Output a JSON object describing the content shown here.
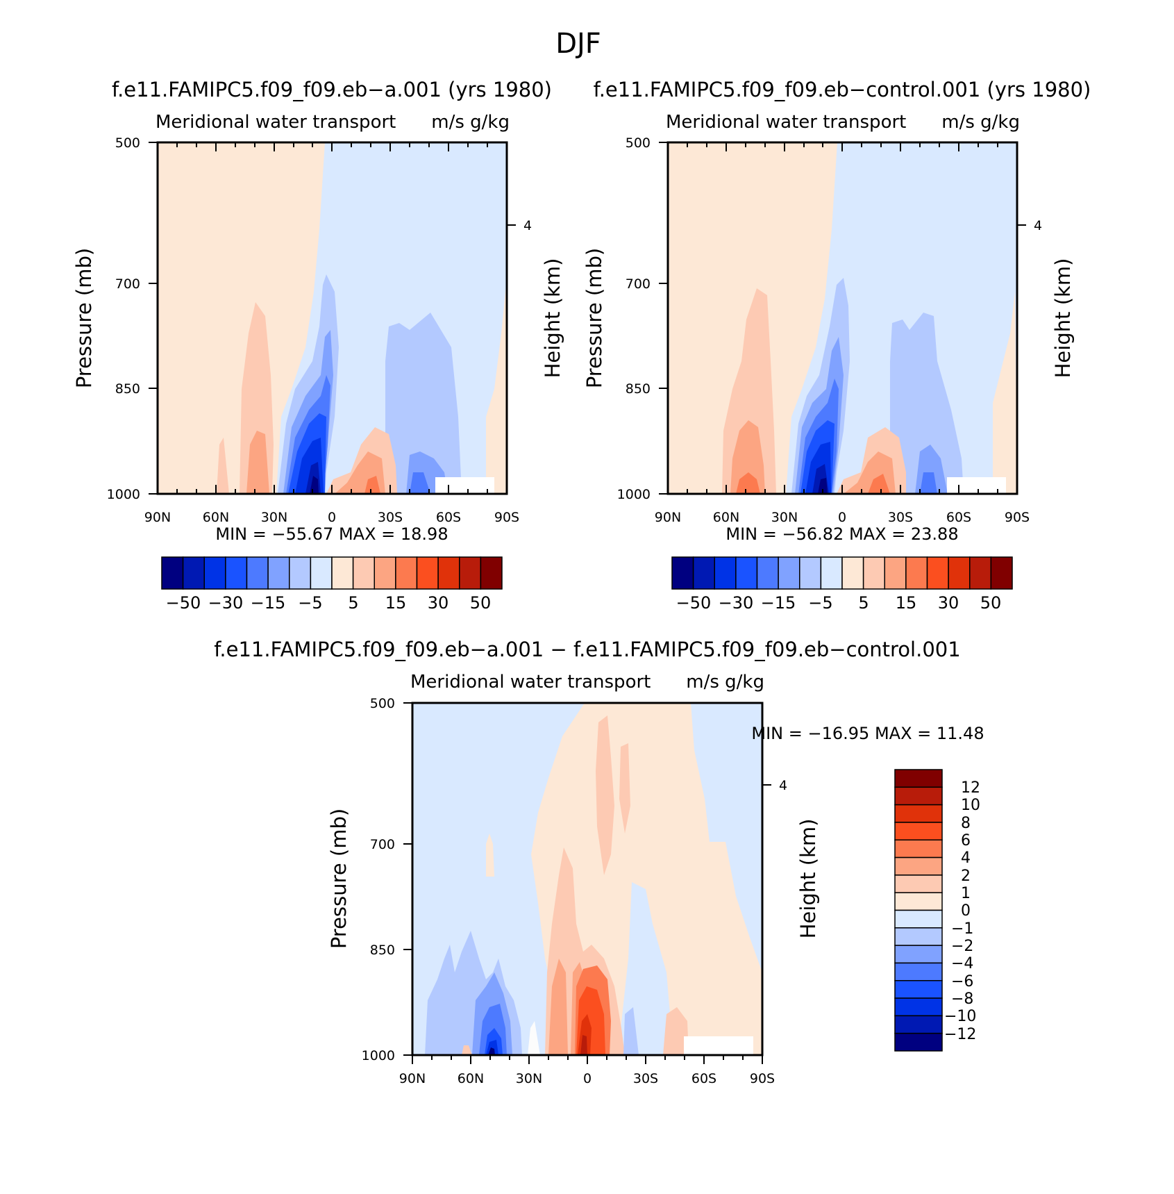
{
  "figure": {
    "title": "DJF"
  },
  "panels": [
    {
      "id": "a",
      "case_title": "f.e11.FAMIPC5.f09_f09.eb−a.001 (yrs 1980)",
      "variable": "Meridional water transport",
      "units": "m/s g/kg",
      "ylabel": "Pressure (mb)",
      "ylabel_right": "Height (km)",
      "minmax": "MIN = −55.67   MAX =   18.98"
    },
    {
      "id": "control",
      "case_title": "f.e11.FAMIPC5.f09_f09.eb−control.001 (yrs 1980)",
      "variable": "Meridional water transport",
      "units": "m/s g/kg",
      "ylabel": "Pressure (mb)",
      "ylabel_right": "Height (km)",
      "minmax": "MIN = −56.82   MAX =   23.88"
    },
    {
      "id": "diff",
      "case_title": "f.e11.FAMIPC5.f09_f09.eb−a.001 − f.e11.FAMIPC5.f09_f09.eb−control.001",
      "variable": "Meridional water transport",
      "units": "m/s g/kg",
      "ylabel": "Pressure (mb)",
      "ylabel_right": "Height (km)",
      "minmax": "MIN = −16.95   MAX =   11.48"
    }
  ],
  "axes": {
    "x_ticks": [
      "90N",
      "60N",
      "30N",
      "0",
      "30S",
      "60S",
      "90S"
    ],
    "y_ticks": [
      "500",
      "700",
      "850",
      "1000"
    ],
    "y_right_ticks": [
      "4"
    ]
  },
  "colorbar_main": {
    "colors": [
      "#000080",
      "#0019b3",
      "#0033e6",
      "#1a53ff",
      "#4d7aff",
      "#80a2ff",
      "#b3c9ff",
      "#d9e9ff",
      "#fde8d6",
      "#fdcab3",
      "#fca582",
      "#fc7a4f",
      "#fb4f1f",
      "#e0320a",
      "#b81c0a",
      "#800000"
    ],
    "labels": [
      "−50",
      "−30",
      "−15",
      "−5",
      "5",
      "15",
      "30",
      "50"
    ]
  },
  "colorbar_diff": {
    "colors": [
      "#800000",
      "#b81c0a",
      "#e0320a",
      "#fb4f1f",
      "#fc7a4f",
      "#fca582",
      "#fdcab3",
      "#fde8d6",
      "#d9e9ff",
      "#b3c9ff",
      "#80a2ff",
      "#4d7aff",
      "#1a53ff",
      "#0033e6",
      "#0019b3",
      "#000080"
    ],
    "labels": [
      "12",
      "10",
      "8",
      "6",
      "4",
      "2",
      "1",
      "0",
      "−1",
      "−2",
      "−4",
      "−6",
      "−8",
      "−10",
      "−12"
    ]
  },
  "chart_data": [
    {
      "type": "heatmap",
      "title": "f.e11.FAMIPC5.f09_f09.eb−a.001 (yrs 1980)",
      "subtitle": "Meridional water transport",
      "units": "m/s g/kg",
      "xlabel": "",
      "ylabel": "Pressure (mb)",
      "x_categories": [
        "90N",
        "60N",
        "30N",
        "0",
        "30S",
        "60S",
        "90S"
      ],
      "y_categories": [
        "500",
        "700",
        "850",
        "1000"
      ],
      "min": -55.67,
      "max": 18.98,
      "contour_levels": [
        -50,
        -40,
        -30,
        -20,
        -15,
        -10,
        -5,
        0,
        5,
        10,
        15,
        20,
        30,
        40,
        50
      ]
    },
    {
      "type": "heatmap",
      "title": "f.e11.FAMIPC5.f09_f09.eb−control.001 (yrs 1980)",
      "subtitle": "Meridional water transport",
      "units": "m/s g/kg",
      "xlabel": "",
      "ylabel": "Pressure (mb)",
      "x_categories": [
        "90N",
        "60N",
        "30N",
        "0",
        "30S",
        "60S",
        "90S"
      ],
      "y_categories": [
        "500",
        "700",
        "850",
        "1000"
      ],
      "min": -56.82,
      "max": 23.88,
      "contour_levels": [
        -50,
        -40,
        -30,
        -20,
        -15,
        -10,
        -5,
        0,
        5,
        10,
        15,
        20,
        30,
        40,
        50
      ]
    },
    {
      "type": "heatmap",
      "title": "f.e11.FAMIPC5.f09_f09.eb−a.001 − f.e11.FAMIPC5.f09_f09.eb−control.001",
      "subtitle": "Meridional water transport",
      "units": "m/s g/kg",
      "xlabel": "",
      "ylabel": "Pressure (mb)",
      "x_categories": [
        "90N",
        "60N",
        "30N",
        "0",
        "30S",
        "60S",
        "90S"
      ],
      "y_categories": [
        "500",
        "700",
        "850",
        "1000"
      ],
      "min": -16.95,
      "max": 11.48,
      "contour_levels": [
        -12,
        -10,
        -8,
        -6,
        -4,
        -2,
        -1,
        0,
        1,
        2,
        4,
        6,
        8,
        10,
        12
      ]
    }
  ]
}
